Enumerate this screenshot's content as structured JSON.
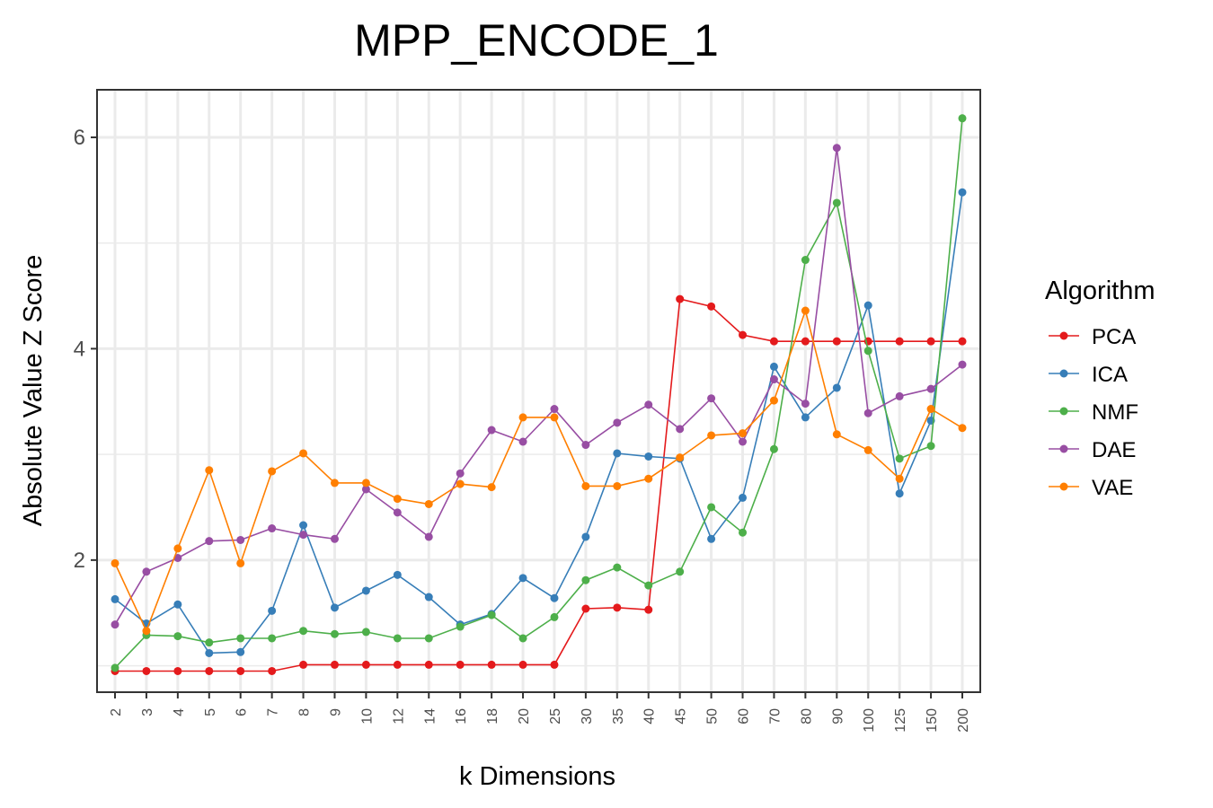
{
  "chart_data": {
    "type": "line",
    "title": "MPP_ENCODE_1",
    "xlabel": "k Dimensions",
    "ylabel": "Absolute Value Z Score",
    "categories": [
      "2",
      "3",
      "4",
      "5",
      "6",
      "7",
      "8",
      "9",
      "10",
      "12",
      "14",
      "16",
      "18",
      "20",
      "25",
      "30",
      "35",
      "40",
      "45",
      "50",
      "60",
      "70",
      "80",
      "90",
      "100",
      "125",
      "150",
      "200"
    ],
    "ylim": [
      0.75,
      6.45
    ],
    "yticks": [
      2,
      4,
      6
    ],
    "grid": true,
    "legend_title": "Algorithm",
    "legend_position": "right",
    "series": [
      {
        "name": "PCA",
        "color": "#e41a1c",
        "values": [
          0.95,
          0.95,
          0.95,
          0.95,
          0.95,
          0.95,
          1.01,
          1.01,
          1.01,
          1.01,
          1.01,
          1.01,
          1.01,
          1.01,
          1.01,
          1.54,
          1.55,
          1.53,
          4.47,
          4.4,
          4.13,
          4.07,
          4.07,
          4.07,
          4.07,
          4.07,
          4.07,
          4.07
        ]
      },
      {
        "name": "ICA",
        "color": "#377eb8",
        "values": [
          1.63,
          1.4,
          1.58,
          1.12,
          1.13,
          1.52,
          2.33,
          1.55,
          1.71,
          1.86,
          1.65,
          1.39,
          1.49,
          1.83,
          1.64,
          2.22,
          3.01,
          2.98,
          2.96,
          2.2,
          2.59,
          3.83,
          3.35,
          3.63,
          4.41,
          2.63,
          3.32,
          5.48
        ]
      },
      {
        "name": "NMF",
        "color": "#4daf4a",
        "values": [
          0.98,
          1.29,
          1.28,
          1.22,
          1.26,
          1.26,
          1.33,
          1.3,
          1.32,
          1.26,
          1.26,
          1.37,
          1.48,
          1.26,
          1.46,
          1.81,
          1.93,
          1.76,
          1.89,
          2.5,
          2.26,
          3.05,
          4.84,
          5.38,
          3.98,
          2.96,
          3.08,
          6.18
        ]
      },
      {
        "name": "DAE",
        "color": "#984ea3",
        "values": [
          1.39,
          1.89,
          2.02,
          2.18,
          2.19,
          2.3,
          2.24,
          2.2,
          2.67,
          2.45,
          2.22,
          2.82,
          3.23,
          3.12,
          3.43,
          3.09,
          3.3,
          3.47,
          3.24,
          3.53,
          3.12,
          3.71,
          3.48,
          5.9,
          3.39,
          3.55,
          3.62,
          3.85
        ]
      },
      {
        "name": "VAE",
        "color": "#ff7f00",
        "values": [
          1.97,
          1.33,
          2.11,
          2.85,
          1.97,
          2.84,
          3.01,
          2.73,
          2.73,
          2.58,
          2.53,
          2.72,
          2.69,
          3.35,
          3.35,
          2.7,
          2.7,
          2.77,
          2.97,
          3.18,
          3.2,
          3.51,
          4.36,
          3.19,
          3.04,
          2.77,
          3.43,
          3.25
        ]
      }
    ]
  }
}
